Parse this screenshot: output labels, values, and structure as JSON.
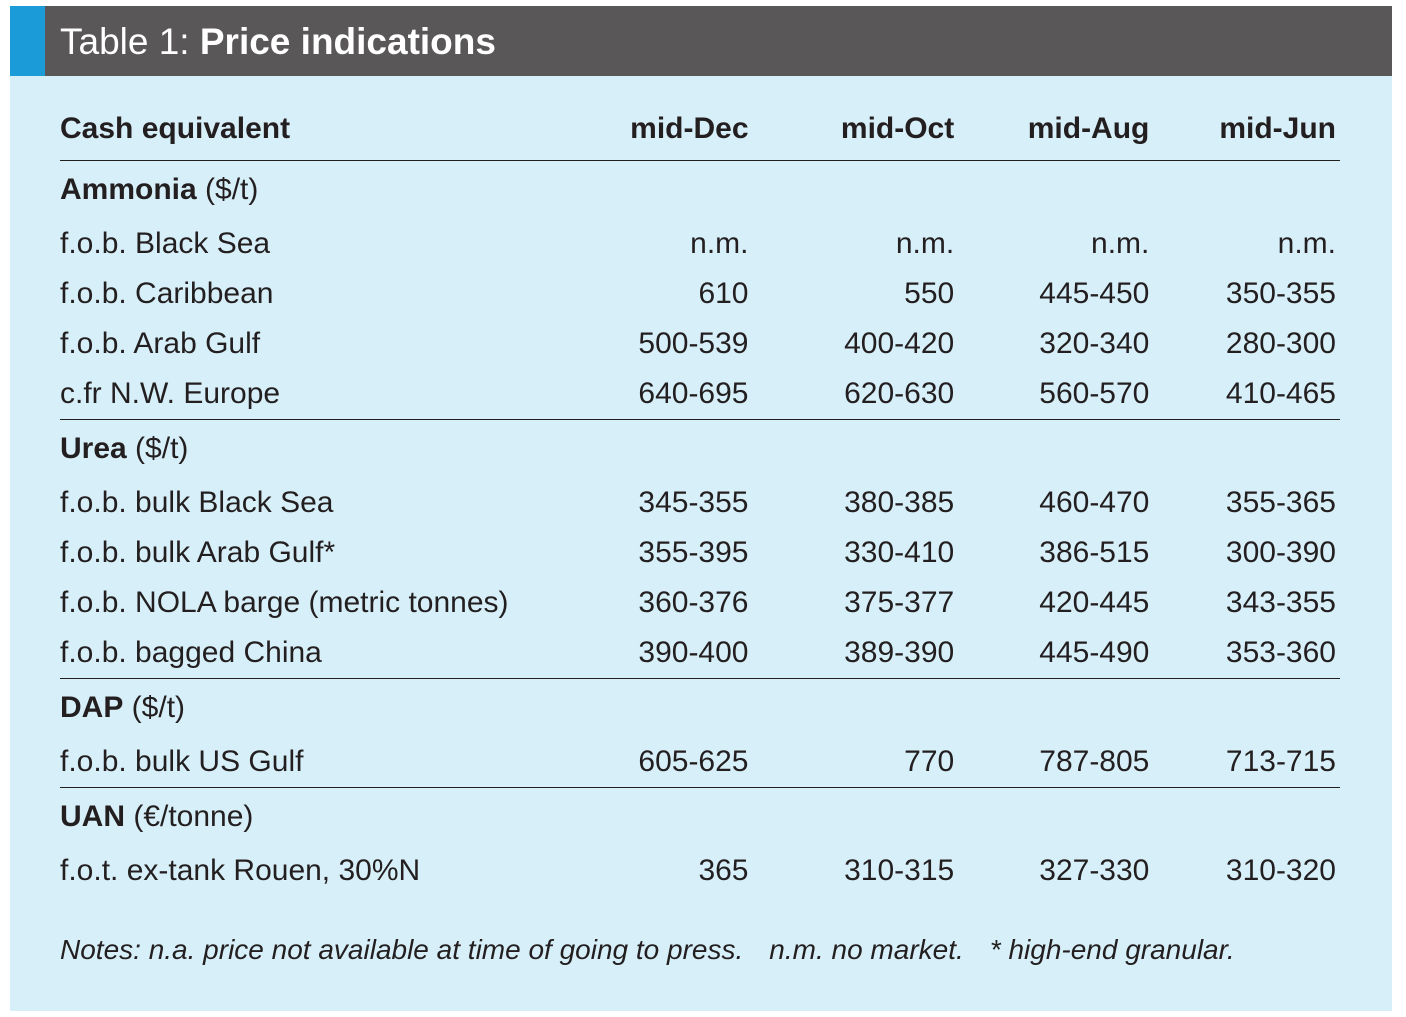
{
  "table": {
    "title_prefix": "Table 1: ",
    "title": "Price indications",
    "columns": [
      "Cash equivalent",
      "mid-Dec",
      "mid-Oct",
      "mid-Aug",
      "mid-Jun"
    ],
    "sections": [
      {
        "name": "Ammonia",
        "unit": " ($/t)",
        "rows": [
          {
            "label": "f.o.b. Black Sea",
            "values": [
              "n.m.",
              "n.m.",
              "n.m.",
              "n.m."
            ]
          },
          {
            "label": "f.o.b. Caribbean",
            "values": [
              "610",
              "550",
              "445-450",
              "350-355"
            ]
          },
          {
            "label": "f.o.b. Arab Gulf",
            "values": [
              "500-539",
              "400-420",
              "320-340",
              "280-300"
            ]
          },
          {
            "label": "c.fr N.W. Europe",
            "values": [
              "640-695",
              "620-630",
              "560-570",
              "410-465"
            ]
          }
        ]
      },
      {
        "name": "Urea",
        "unit": " ($/t)",
        "rows": [
          {
            "label": "f.o.b. bulk Black Sea",
            "values": [
              "345-355",
              "380-385",
              "460-470",
              "355-365"
            ]
          },
          {
            "label": "f.o.b. bulk Arab Gulf*",
            "values": [
              "355-395",
              "330-410",
              "386-515",
              "300-390"
            ]
          },
          {
            "label": "f.o.b. NOLA barge (metric tonnes)",
            "values": [
              "360-376",
              "375-377",
              "420-445",
              "343-355"
            ]
          },
          {
            "label": "f.o.b. bagged China",
            "values": [
              "390-400",
              "389-390",
              "445-490",
              "353-360"
            ]
          }
        ]
      },
      {
        "name": "DAP",
        "unit": " ($/t)",
        "rows": [
          {
            "label": "f.o.b. bulk US Gulf",
            "values": [
              "605-625",
              "770",
              "787-805",
              "713-715"
            ]
          }
        ]
      },
      {
        "name": "UAN",
        "unit": " (€/tonne)",
        "rows": [
          {
            "label": "f.o.t. ex-tank Rouen, 30%N",
            "values": [
              "365",
              "310-315",
              "327-330",
              "310-320"
            ]
          }
        ]
      }
    ],
    "notes": [
      "Notes: n.a. price not available at time of going to press.",
      "n.m. no market.",
      "* high-end granular."
    ]
  },
  "colors": {
    "panel_background": "#d7eff8",
    "title_bar": "#595758",
    "title_accent": "#1b9bd7",
    "text": "#231f20"
  }
}
